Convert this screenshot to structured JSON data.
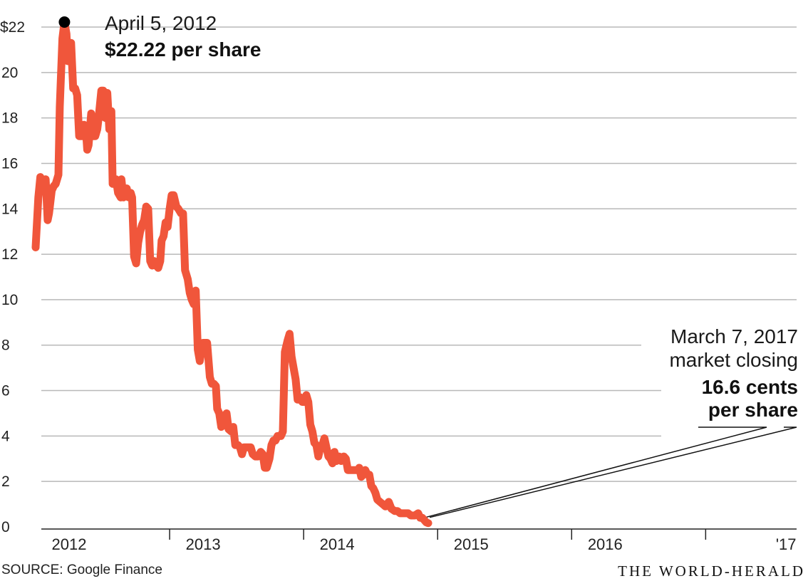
{
  "chart_data": {
    "type": "line",
    "title": "",
    "xlabel": "",
    "ylabel": "",
    "ylim": [
      0,
      22
    ],
    "y_ticks": [
      {
        "value": 22,
        "label": "$22"
      },
      {
        "value": 20,
        "label": "20"
      },
      {
        "value": 18,
        "label": "18"
      },
      {
        "value": 16,
        "label": "16"
      },
      {
        "value": 14,
        "label": "14"
      },
      {
        "value": 12,
        "label": "12"
      },
      {
        "value": 10,
        "label": "10"
      },
      {
        "value": 8,
        "label": "8"
      },
      {
        "value": 6,
        "label": "6"
      },
      {
        "value": 4,
        "label": "4"
      },
      {
        "value": 2,
        "label": "2"
      },
      {
        "value": 0,
        "label": "0"
      }
    ],
    "x_range": [
      2011.5,
      2017.2
    ],
    "x_ticks": [
      2012,
      2013,
      2014,
      2015,
      2016,
      2017
    ],
    "x_tick_labels": [
      {
        "x": 2011.75,
        "label": "2012"
      },
      {
        "x": 2012.75,
        "label": "2013"
      },
      {
        "x": 2013.75,
        "label": "2014"
      },
      {
        "x": 2014.75,
        "label": "2015"
      },
      {
        "x": 2015.75,
        "label": "2016"
      },
      {
        "x": 2017.1,
        "label": "'17"
      }
    ],
    "grid": true,
    "line_color": "#f0563b",
    "series": [
      {
        "values": [
          [
            2011.5,
            12.3
          ],
          [
            2011.52,
            14.5
          ],
          [
            2011.535,
            15.4
          ],
          [
            2011.55,
            15.2
          ],
          [
            2011.56,
            14.8
          ],
          [
            2011.575,
            15.3
          ],
          [
            2011.59,
            13.5
          ],
          [
            2011.6,
            13.8
          ],
          [
            2011.62,
            14.8
          ],
          [
            2011.635,
            15.0
          ],
          [
            2011.65,
            15.1
          ],
          [
            2011.67,
            15.5
          ],
          [
            2011.68,
            18.5
          ],
          [
            2011.7,
            21.5
          ],
          [
            2011.715,
            22.22
          ],
          [
            2011.73,
            21.7
          ],
          [
            2011.74,
            20.5
          ],
          [
            2011.75,
            21.2
          ],
          [
            2011.765,
            21.3
          ],
          [
            2011.78,
            19.3
          ],
          [
            2011.795,
            19.3
          ],
          [
            2011.81,
            19.0
          ],
          [
            2011.825,
            17.2
          ],
          [
            2011.845,
            17.2
          ],
          [
            2011.86,
            17.7
          ],
          [
            2011.875,
            17.5
          ],
          [
            2011.885,
            16.6
          ],
          [
            2011.895,
            16.8
          ],
          [
            2011.915,
            18.2
          ],
          [
            2011.925,
            17.2
          ],
          [
            2011.945,
            17.2
          ],
          [
            2011.96,
            17.5
          ],
          [
            2011.97,
            18.0
          ],
          [
            2011.99,
            19.2
          ],
          [
            2012.005,
            19.2
          ],
          [
            2012.02,
            18.0
          ],
          [
            2012.035,
            19.1
          ],
          [
            2012.05,
            17.5
          ],
          [
            2012.065,
            18.3
          ],
          [
            2012.075,
            15.1
          ],
          [
            2012.095,
            15.2
          ],
          [
            2012.1,
            15.3
          ],
          [
            2012.115,
            14.7
          ],
          [
            2012.135,
            14.5
          ],
          [
            2012.14,
            15.3
          ],
          [
            2012.155,
            14.5
          ],
          [
            2012.165,
            14.9
          ],
          [
            2012.18,
            14.9
          ],
          [
            2012.195,
            14.5
          ],
          [
            2012.21,
            14.7
          ],
          [
            2012.22,
            14.5
          ],
          [
            2012.235,
            11.9
          ],
          [
            2012.25,
            11.6
          ],
          [
            2012.265,
            12.5
          ],
          [
            2012.28,
            13.0
          ],
          [
            2012.295,
            13.3
          ],
          [
            2012.31,
            13.5
          ],
          [
            2012.325,
            14.1
          ],
          [
            2012.34,
            14.0
          ],
          [
            2012.355,
            11.7
          ],
          [
            2012.37,
            11.5
          ],
          [
            2012.385,
            11.7
          ],
          [
            2012.4,
            11.5
          ],
          [
            2012.415,
            11.4
          ],
          [
            2012.43,
            11.7
          ],
          [
            2012.44,
            12.6
          ],
          [
            2012.455,
            12.8
          ],
          [
            2012.47,
            13.4
          ],
          [
            2012.485,
            13.2
          ],
          [
            2012.5,
            14.0
          ],
          [
            2012.515,
            14.6
          ],
          [
            2012.53,
            14.6
          ],
          [
            2012.55,
            14.1
          ],
          [
            2012.565,
            14.0
          ],
          [
            2012.585,
            13.8
          ],
          [
            2012.6,
            13.8
          ],
          [
            2012.615,
            11.3
          ],
          [
            2012.635,
            10.9
          ],
          [
            2012.65,
            10.3
          ],
          [
            2012.665,
            10.0
          ],
          [
            2012.68,
            9.8
          ],
          [
            2012.695,
            10.4
          ],
          [
            2012.71,
            7.8
          ],
          [
            2012.725,
            7.3
          ],
          [
            2012.735,
            7.7
          ],
          [
            2012.75,
            8.1
          ],
          [
            2012.765,
            8.1
          ],
          [
            2012.78,
            8.1
          ],
          [
            2012.8,
            6.6
          ],
          [
            2012.815,
            6.3
          ],
          [
            2012.83,
            6.3
          ],
          [
            2012.845,
            6.2
          ],
          [
            2012.855,
            5.2
          ],
          [
            2012.87,
            5.0
          ],
          [
            2012.885,
            4.4
          ],
          [
            2012.9,
            4.5
          ],
          [
            2012.91,
            4.6
          ],
          [
            2012.925,
            5.0
          ],
          [
            2012.94,
            4.3
          ],
          [
            2012.96,
            4.2
          ],
          [
            2012.975,
            4.4
          ],
          [
            2012.99,
            3.6
          ],
          [
            2013.01,
            3.6
          ],
          [
            2013.025,
            3.5
          ],
          [
            2013.04,
            3.2
          ],
          [
            2013.055,
            3.5
          ],
          [
            2013.075,
            3.5
          ],
          [
            2013.09,
            3.5
          ],
          [
            2013.105,
            3.5
          ],
          [
            2013.12,
            3.2
          ],
          [
            2013.14,
            3.1
          ],
          [
            2013.16,
            3.1
          ],
          [
            2013.18,
            3.3
          ],
          [
            2013.195,
            3.2
          ],
          [
            2013.21,
            2.6
          ],
          [
            2013.225,
            2.6
          ],
          [
            2013.245,
            3.0
          ],
          [
            2013.26,
            3.6
          ],
          [
            2013.275,
            3.8
          ],
          [
            2013.29,
            3.8
          ],
          [
            2013.305,
            4.0
          ],
          [
            2013.33,
            4.0
          ],
          [
            2013.345,
            4.2
          ],
          [
            2013.36,
            7.7
          ],
          [
            2013.38,
            8.2
          ],
          [
            2013.395,
            8.5
          ],
          [
            2013.41,
            7.5
          ],
          [
            2013.425,
            7.0
          ],
          [
            2013.44,
            6.5
          ],
          [
            2013.455,
            5.6
          ],
          [
            2013.475,
            5.7
          ],
          [
            2013.49,
            5.5
          ],
          [
            2013.505,
            5.5
          ],
          [
            2013.52,
            5.8
          ],
          [
            2013.535,
            5.5
          ],
          [
            2013.55,
            4.5
          ],
          [
            2013.565,
            4.2
          ],
          [
            2013.58,
            3.7
          ],
          [
            2013.595,
            3.6
          ],
          [
            2013.61,
            3.1
          ],
          [
            2013.625,
            3.5
          ],
          [
            2013.64,
            3.6
          ],
          [
            2013.655,
            3.9
          ],
          [
            2013.67,
            3.5
          ],
          [
            2013.685,
            3.1
          ],
          [
            2013.7,
            3.0
          ],
          [
            2013.715,
            2.8
          ],
          [
            2013.73,
            3.3
          ],
          [
            2013.745,
            2.9
          ],
          [
            2013.765,
            3.1
          ],
          [
            2013.78,
            2.9
          ],
          [
            2013.8,
            3.1
          ],
          [
            2013.815,
            3.0
          ],
          [
            2013.83,
            2.5
          ],
          [
            2013.85,
            2.5
          ],
          [
            2013.865,
            2.5
          ],
          [
            2013.885,
            2.5
          ],
          [
            2013.905,
            2.5
          ],
          [
            2013.915,
            2.6
          ],
          [
            2013.93,
            2.2
          ],
          [
            2013.945,
            2.3
          ],
          [
            2013.96,
            2.5
          ],
          [
            2013.975,
            2.3
          ],
          [
            2013.99,
            2.3
          ],
          [
            2014.005,
            1.8
          ],
          [
            2014.02,
            1.7
          ],
          [
            2014.035,
            1.5
          ],
          [
            2014.05,
            1.2
          ],
          [
            2014.07,
            1.1
          ],
          [
            2014.09,
            1.0
          ],
          [
            2014.11,
            0.9
          ],
          [
            2014.135,
            1.1
          ],
          [
            2014.155,
            0.8
          ],
          [
            2014.18,
            0.7
          ],
          [
            2014.2,
            0.7
          ],
          [
            2014.22,
            0.6
          ],
          [
            2014.25,
            0.6
          ],
          [
            2014.28,
            0.6
          ],
          [
            2014.3,
            0.5
          ],
          [
            2014.33,
            0.5
          ],
          [
            2014.355,
            0.6
          ],
          [
            2014.37,
            0.4
          ],
          [
            2014.385,
            0.4
          ],
          [
            2014.4,
            0.3
          ],
          [
            2014.415,
            0.2
          ],
          [
            2014.43,
            0.166
          ]
        ]
      }
    ],
    "annotations": [
      {
        "x": 2011.715,
        "y": 22.22,
        "lines": [
          "April 5, 2012"
        ],
        "bold_lines": [
          "$22.22 per share"
        ]
      },
      {
        "x": 2014.43,
        "y": 0.166,
        "lines": [
          "March 7, 2017",
          "market closing"
        ],
        "bold_lines": [
          "16.6 cents",
          "per share"
        ]
      }
    ]
  },
  "footer": {
    "source": "SOURCE: Google Finance",
    "brand": "THE WORLD-HERALD"
  }
}
